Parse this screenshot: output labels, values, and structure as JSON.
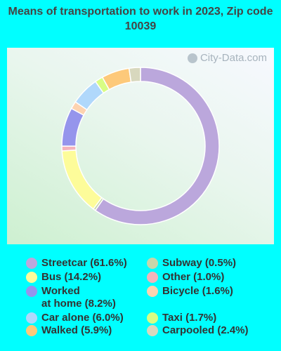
{
  "title": "Means of transportation to work in 2023, Zip code 10039",
  "watermark": "City-Data.com",
  "chart_data": {
    "type": "donut",
    "title": "Means of transportation to work in 2023, Zip code 10039",
    "legend_placement": "bottom",
    "slices": [
      {
        "label": "Streetcar",
        "value": 61.6,
        "legend": "Streetcar (61.6%)",
        "color": "#bba7dc"
      },
      {
        "label": "Subway",
        "value": 0.5,
        "legend": "Subway (0.5%)",
        "color": "#c6d6aa"
      },
      {
        "label": "Bus",
        "value": 14.2,
        "legend": "Bus (14.2%)",
        "color": "#fdfc9a"
      },
      {
        "label": "Other",
        "value": 1.0,
        "legend": "Other (1.0%)",
        "color": "#f4b4bb"
      },
      {
        "label": "Worked at home",
        "value": 8.2,
        "legend": "Worked\nat home (8.2%)",
        "color": "#9595ec"
      },
      {
        "label": "Bicycle",
        "value": 1.6,
        "legend": "Bicycle (1.6%)",
        "color": "#fdd3b0"
      },
      {
        "label": "Car alone",
        "value": 6.0,
        "legend": "Car alone (6.0%)",
        "color": "#b0d8fb"
      },
      {
        "label": "Taxi",
        "value": 1.7,
        "legend": "Taxi (1.7%)",
        "color": "#d8fd84"
      },
      {
        "label": "Walked",
        "value": 5.9,
        "legend": "Walked (5.9%)",
        "color": "#fdc97a"
      },
      {
        "label": "Carpooled",
        "value": 2.4,
        "legend": "Carpooled (2.4%)",
        "color": "#d8d8be"
      }
    ]
  }
}
